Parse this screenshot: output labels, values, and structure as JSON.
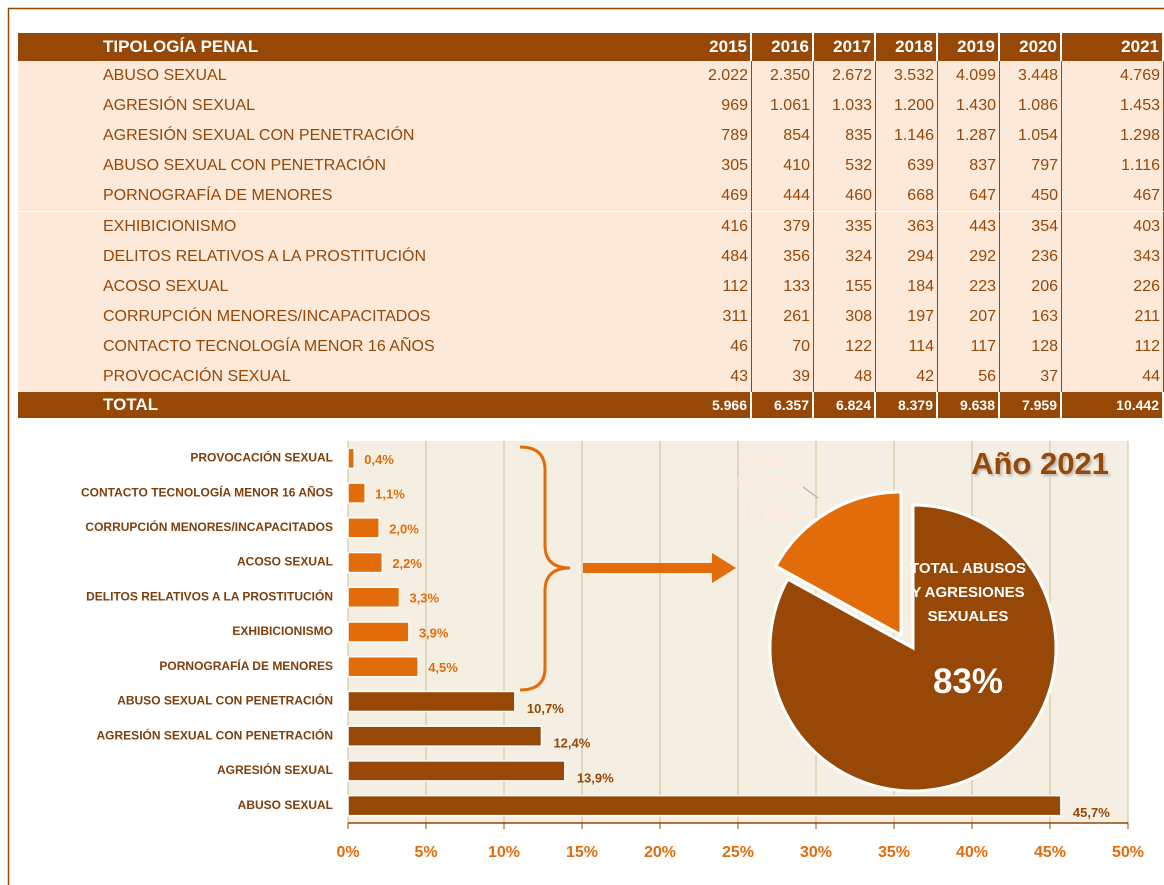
{
  "table": {
    "header": [
      "TIPOLOGÍA PENAL",
      "2015",
      "2016",
      "2017",
      "2018",
      "2019",
      "2020",
      "2021"
    ],
    "rows": [
      [
        "ABUSO SEXUAL",
        "2.022",
        "2.350",
        "2.672",
        "3.532",
        "4.099",
        "3.448",
        "4.769"
      ],
      [
        "AGRESIÓN SEXUAL",
        "969",
        "1.061",
        "1.033",
        "1.200",
        "1.430",
        "1.086",
        "1.453"
      ],
      [
        "AGRESIÓN SEXUAL CON PENETRACIÓN",
        "789",
        "854",
        "835",
        "1.146",
        "1.287",
        "1.054",
        "1.298"
      ],
      [
        "ABUSO SEXUAL CON PENETRACIÓN",
        "305",
        "410",
        "532",
        "639",
        "837",
        "797",
        "1.116"
      ],
      [
        "PORNOGRAFÍA DE MENORES",
        "469",
        "444",
        "460",
        "668",
        "647",
        "450",
        "467"
      ],
      [
        "EXHIBICIONISMO",
        "416",
        "379",
        "335",
        "363",
        "443",
        "354",
        "403"
      ],
      [
        "DELITOS RELATIVOS A LA PROSTITUCIÓN",
        "484",
        "356",
        "324",
        "294",
        "292",
        "236",
        "343"
      ],
      [
        "ACOSO SEXUAL",
        "112",
        "133",
        "155",
        "184",
        "223",
        "206",
        "226"
      ],
      [
        "CORRUPCIÓN MENORES/INCAPACITADOS",
        "311",
        "261",
        "308",
        "197",
        "207",
        "163",
        "211"
      ],
      [
        "CONTACTO TECNOLOGÍA MENOR 16 AÑOS",
        "46",
        "70",
        "122",
        "114",
        "117",
        "128",
        "112"
      ],
      [
        "PROVOCACIÓN SEXUAL",
        "43",
        "39",
        "48",
        "42",
        "56",
        "37",
        "44"
      ]
    ],
    "total": [
      "TOTAL",
      "5.966",
      "6.357",
      "6.824",
      "8.379",
      "9.638",
      "7.959",
      "10.442"
    ]
  },
  "chart_data": [
    {
      "type": "bar",
      "orientation": "horizontal",
      "categories": [
        "PROVOCACIÓN SEXUAL",
        "CONTACTO TECNOLOGÍA MENOR 16 AÑOS",
        "CORRUPCIÓN MENORES/INCAPACITADOS",
        "ACOSO SEXUAL",
        "DELITOS RELATIVOS A LA PROSTITUCIÓN",
        "EXHIBICIONISMO",
        "PORNOGRAFÍA DE MENORES",
        "ABUSO SEXUAL CON PENETRACIÓN",
        "AGRESIÓN SEXUAL CON PENETRACIÓN",
        "AGRESIÓN SEXUAL",
        "ABUSO SEXUAL"
      ],
      "values": [
        0.4,
        1.1,
        2.0,
        2.2,
        3.3,
        3.9,
        4.5,
        10.7,
        12.4,
        13.9,
        45.7
      ],
      "value_labels": [
        "0,4%",
        "1,1%",
        "2,0%",
        "2,2%",
        "3,3%",
        "3,9%",
        "4,5%",
        "10,7%",
        "12,4%",
        "13,9%",
        "45,7%"
      ],
      "colors": [
        "#e36c0a",
        "#e36c0a",
        "#e36c0a",
        "#e36c0a",
        "#e36c0a",
        "#e36c0a",
        "#e36c0a",
        "#974706",
        "#974706",
        "#974706",
        "#974706"
      ],
      "xlim": [
        0,
        50
      ],
      "xticks": [
        {
          "value": 0,
          "label": "0%"
        },
        {
          "value": 5,
          "label": "5%"
        },
        {
          "value": 10,
          "label": "10%"
        },
        {
          "value": 15,
          "label": "15%"
        },
        {
          "value": 20,
          "label": "20%"
        },
        {
          "value": 25,
          "label": "25%"
        },
        {
          "value": 30,
          "label": "30%"
        },
        {
          "value": 35,
          "label": "35%"
        },
        {
          "value": 40,
          "label": "40%"
        },
        {
          "value": 45,
          "label": "45%"
        },
        {
          "value": 50,
          "label": "50%"
        }
      ],
      "grid": true
    },
    {
      "type": "pie",
      "title": "Año 2021",
      "categories": [
        "RESTO DELITOS",
        "TOTAL ABUSOS Y AGRESIONES SEXUALES"
      ],
      "values": [
        17,
        83
      ],
      "value_labels": [
        "17%",
        "83%"
      ],
      "colors": [
        "#e36c0a",
        "#974706"
      ]
    }
  ]
}
